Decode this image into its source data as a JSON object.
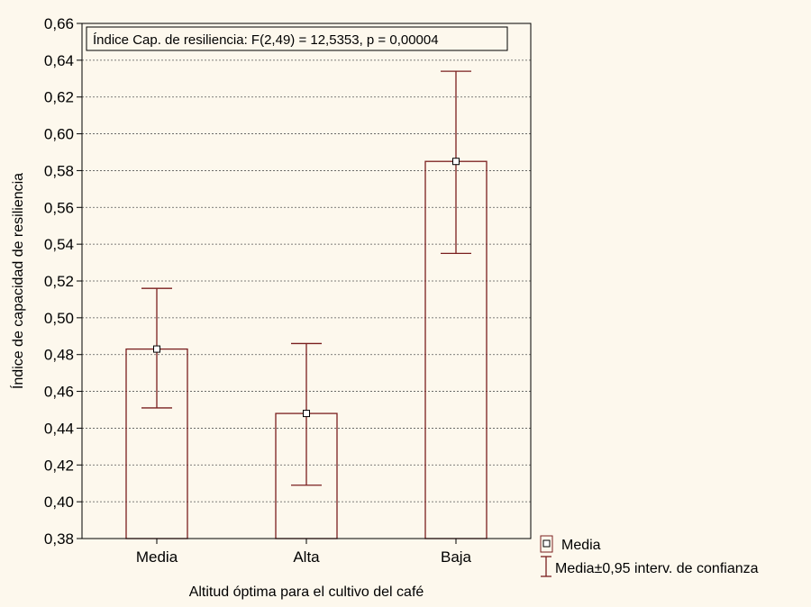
{
  "chart_data": {
    "type": "bar",
    "title": "",
    "annotation": "Índice Cap. de resiliencia:  F(2,49) = 12,5353,  p = 0,00004",
    "xlabel": "Altitud óptima para el cultivo del café",
    "ylabel": "Índice de capacidad de resiliencia",
    "categories": [
      "Media",
      "Alta",
      "Baja"
    ],
    "series": [
      {
        "name": "Media",
        "values": [
          0.483,
          0.448,
          0.585
        ]
      }
    ],
    "ci_lower": [
      0.451,
      0.409,
      0.535
    ],
    "ci_upper": [
      0.516,
      0.486,
      0.634
    ],
    "ylim": [
      0.38,
      0.66
    ],
    "yticks": [
      "0,38",
      "0,40",
      "0,42",
      "0,44",
      "0,46",
      "0,48",
      "0,50",
      "0,52",
      "0,54",
      "0,56",
      "0,58",
      "0,60",
      "0,62",
      "0,64",
      "0,66"
    ],
    "grid": true,
    "legend": {
      "placement": "bottom-right",
      "items": [
        "Media",
        "Media±0,95 interv. de confianza"
      ]
    },
    "colors": {
      "bar": "#7a1f1f",
      "background": "#fdf8ed",
      "grid": "#555555"
    }
  }
}
